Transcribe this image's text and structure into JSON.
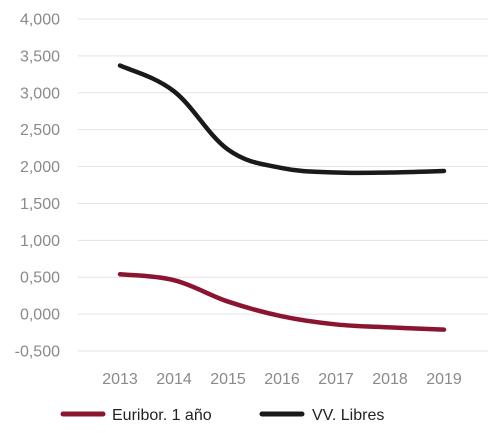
{
  "chart_data": {
    "type": "line",
    "x": [
      2013,
      2014,
      2015,
      2016,
      2017,
      2018,
      2019
    ],
    "x_tick_labels": [
      "2013",
      "2014",
      "2015",
      "2016",
      "2017",
      "2018",
      "2019"
    ],
    "y_tick_labels": [
      "4,000",
      "3,500",
      "3,000",
      "2,500",
      "2,000",
      "1,500",
      "1,000",
      "0,500",
      "0,000",
      "-0,500"
    ],
    "ylim": [
      -0.5,
      4.0
    ],
    "grid": true,
    "legend_position": "bottom",
    "series": [
      {
        "name": "Euribor. 1 año",
        "color": "#8b1430",
        "values": [
          0.54,
          0.46,
          0.17,
          -0.03,
          -0.14,
          -0.18,
          -0.21
        ]
      },
      {
        "name": "VV. Libres",
        "color": "#1a1a1a",
        "values": [
          3.37,
          3.02,
          2.23,
          1.98,
          1.92,
          1.92,
          1.94
        ]
      }
    ]
  }
}
